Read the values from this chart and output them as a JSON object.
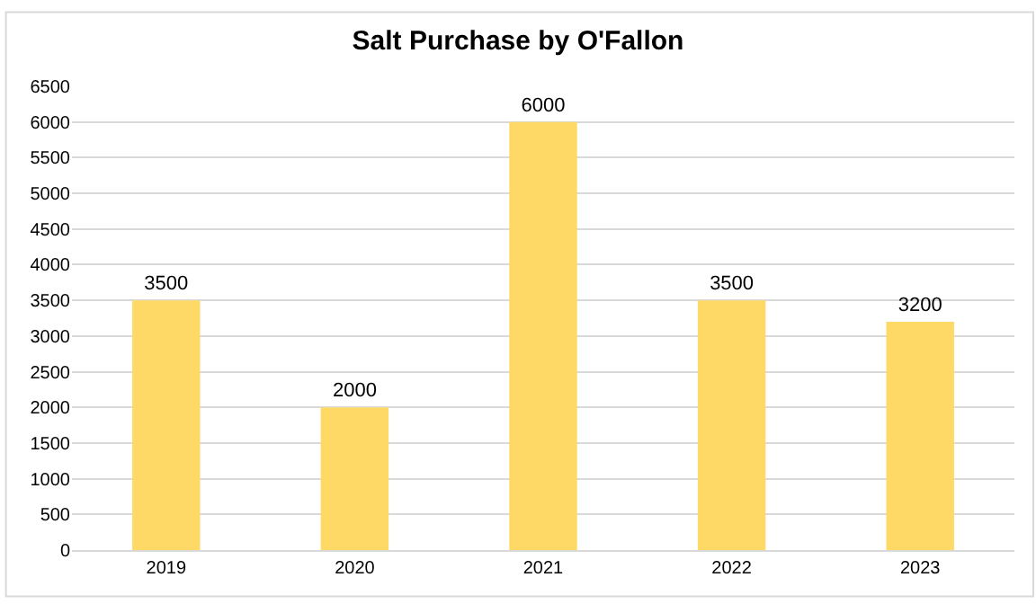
{
  "chart_data": {
    "type": "bar",
    "title": "Salt Purchase by O'Fallon",
    "categories": [
      "2019",
      "2020",
      "2021",
      "2022",
      "2023"
    ],
    "values": [
      3500,
      2000,
      6000,
      3500,
      3200
    ],
    "color": "#ffd966",
    "ylim": [
      0,
      6500
    ],
    "yticks": [
      0,
      500,
      1000,
      1500,
      2000,
      2500,
      3000,
      3500,
      4000,
      4500,
      5000,
      5500,
      6000,
      6500
    ],
    "grid": "y",
    "data_labels": true,
    "legend": false
  }
}
